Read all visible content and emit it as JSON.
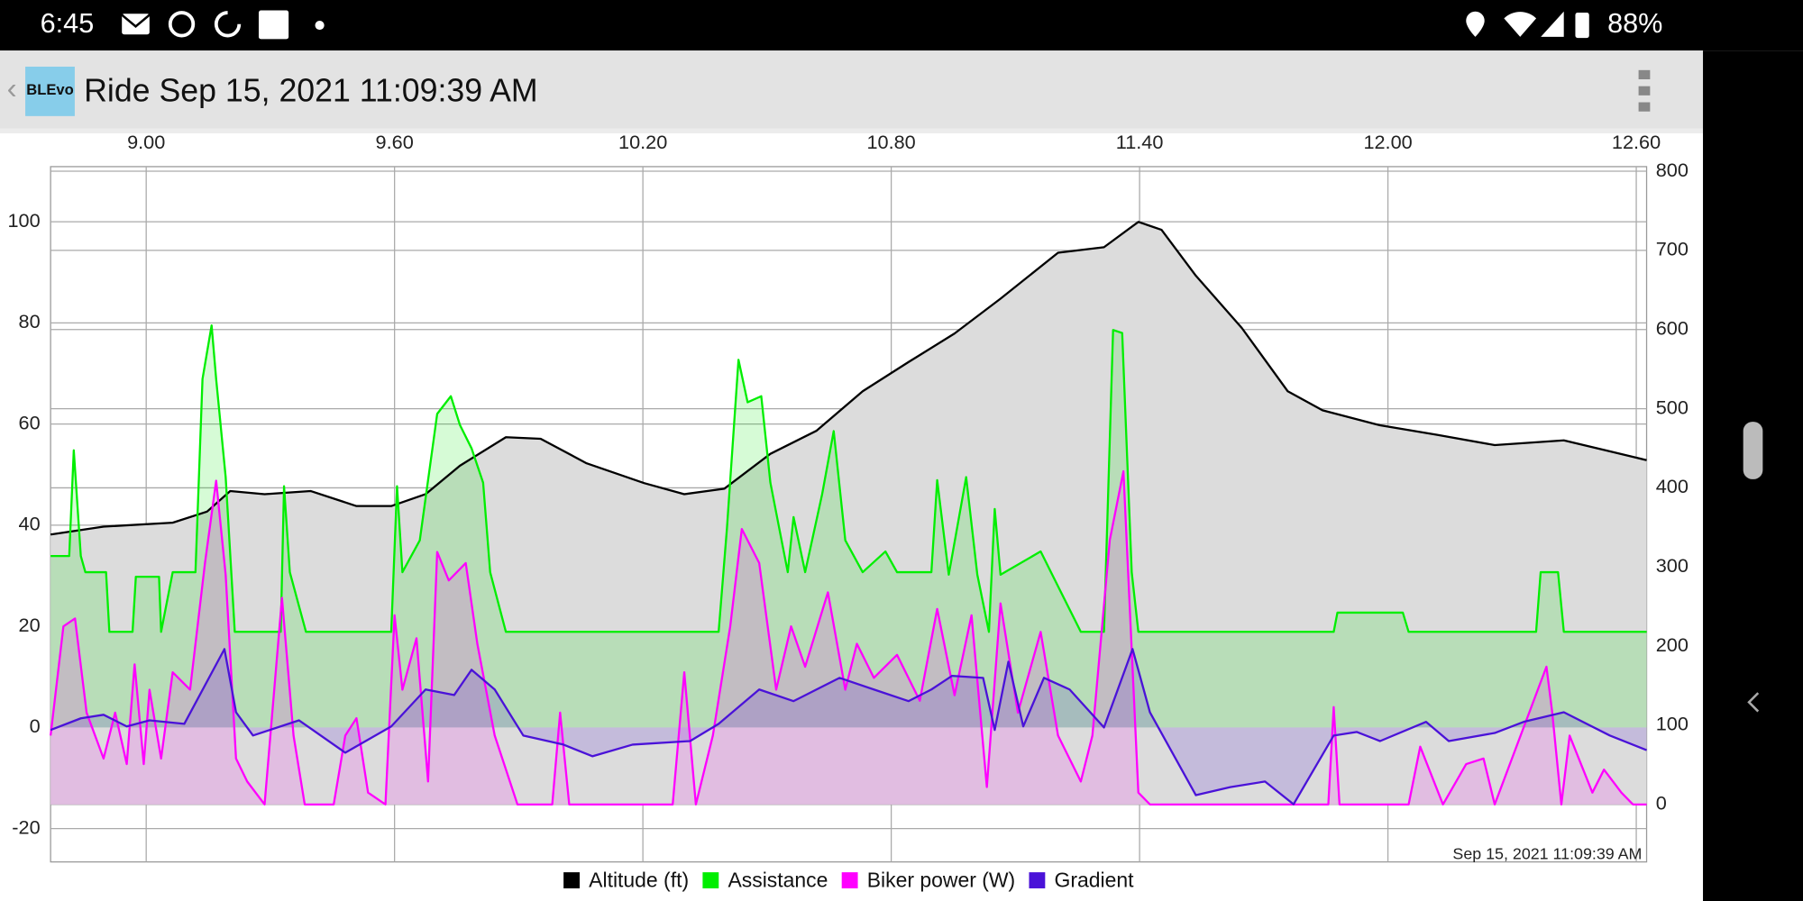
{
  "status_bar": {
    "time": "6:45",
    "battery": "88%"
  },
  "app_bar": {
    "logo": "BLEvo",
    "title": "Ride Sep 15, 2021 11:09:39 AM"
  },
  "chart_data": {
    "type": "line",
    "annotation": "Sep 15, 2021 11:09:39 AM",
    "grid": true,
    "legend": "bottom",
    "xlim": [
      8.769,
      12.625
    ],
    "xticks": [
      {
        "value": 9,
        "label": "9.00"
      },
      {
        "value": 9.6,
        "label": "9.60"
      },
      {
        "value": 10.2,
        "label": "10.20"
      },
      {
        "value": 10.8,
        "label": "10.80"
      },
      {
        "value": 11.4,
        "label": "11.40"
      },
      {
        "value": 12,
        "label": "12.00"
      },
      {
        "value": 12.6,
        "label": "12.60"
      }
    ],
    "ylim": [
      -26.6,
      110.9
    ],
    "yticks": [
      -20,
      0,
      20,
      40,
      60,
      80,
      100
    ],
    "y2lim": [
      -72.6,
      805.8
    ],
    "y2ticks": [
      0,
      100,
      200,
      300,
      400,
      500,
      600,
      700,
      800
    ],
    "series": [
      {
        "name": "Altitude (ft)",
        "color": "#000000",
        "area_color": "#dcdcdc",
        "axis": "y2",
        "x": [
          8.769,
          8.897,
          9.064,
          9.147,
          9.203,
          9.286,
          9.397,
          9.508,
          9.592,
          9.675,
          9.758,
          9.869,
          9.953,
          10.064,
          10.203,
          10.3,
          10.397,
          10.508,
          10.619,
          10.731,
          10.842,
          10.953,
          11.064,
          11.203,
          11.314,
          11.397,
          11.453,
          11.536,
          11.647,
          11.758,
          11.842,
          11.981,
          12.119,
          12.258,
          12.425,
          12.625
        ],
        "values": [
          341,
          351,
          356,
          370,
          396,
          392,
          396,
          377,
          377,
          392,
          428,
          464,
          462,
          431,
          406,
          392,
          399,
          443,
          472,
          522,
          559,
          595,
          639,
          697,
          704,
          736,
          726,
          668,
          602,
          522,
          498,
          479,
          467,
          454,
          460,
          435
        ]
      },
      {
        "name": "Assistance",
        "color": "#00ee00",
        "area_color": "rgba(0,230,0,0.16)",
        "axis": "y",
        "x": [
          8.769,
          8.814,
          8.825,
          8.842,
          8.853,
          8.903,
          8.911,
          8.967,
          8.975,
          9.031,
          9.036,
          9.064,
          9.119,
          9.136,
          9.158,
          9.169,
          9.192,
          9.214,
          9.325,
          9.333,
          9.347,
          9.386,
          9.592,
          9.606,
          9.619,
          9.661,
          9.703,
          9.736,
          9.758,
          9.786,
          9.814,
          9.831,
          9.869,
          10.383,
          10.403,
          10.431,
          10.453,
          10.486,
          10.508,
          10.55,
          10.564,
          10.592,
          10.633,
          10.661,
          10.689,
          10.731,
          10.786,
          10.814,
          10.897,
          10.911,
          10.939,
          10.981,
          11.008,
          11.036,
          11.05,
          11.064,
          11.161,
          11.189,
          11.258,
          11.314,
          11.336,
          11.358,
          11.381,
          11.397,
          11.869,
          11.878,
          12.036,
          12.05,
          12.358,
          12.369,
          12.411,
          12.425,
          12.625
        ],
        "values": [
          33.9,
          33.9,
          54.8,
          33.9,
          30.7,
          30.7,
          18.9,
          18.9,
          29.8,
          29.8,
          18.9,
          30.7,
          30.7,
          68.9,
          79.5,
          68.9,
          49.5,
          18.9,
          18.9,
          47.7,
          30.7,
          18.9,
          18.9,
          47.7,
          30.7,
          37.0,
          62.0,
          65.5,
          59.8,
          55.2,
          48.4,
          30.7,
          18.9,
          18.9,
          39.3,
          72.7,
          64.3,
          65.5,
          48.4,
          30.7,
          41.6,
          30.7,
          46.1,
          58.6,
          37.0,
          30.7,
          34.8,
          30.7,
          30.7,
          48.9,
          30.2,
          49.5,
          30.2,
          18.9,
          43.2,
          30.2,
          34.8,
          30.2,
          18.9,
          18.9,
          78.6,
          78.0,
          30.7,
          18.9,
          18.9,
          22.7,
          22.7,
          18.9,
          18.9,
          30.7,
          30.7,
          18.9,
          18.9
        ]
      },
      {
        "name": "Biker power (W)",
        "color": "#ff00ff",
        "area_color": "rgba(255,0,255,0.14)",
        "axis": "y2",
        "x": [
          8.769,
          8.8,
          8.828,
          8.856,
          8.897,
          8.925,
          8.953,
          8.972,
          8.994,
          9.008,
          9.036,
          9.064,
          9.106,
          9.142,
          9.169,
          9.192,
          9.217,
          9.244,
          9.286,
          9.328,
          9.356,
          9.383,
          9.453,
          9.481,
          9.508,
          9.536,
          9.578,
          9.6,
          9.619,
          9.653,
          9.681,
          9.703,
          9.731,
          9.772,
          9.8,
          9.842,
          9.897,
          9.981,
          10.0,
          10.022,
          10.272,
          10.3,
          10.328,
          10.369,
          10.411,
          10.439,
          10.481,
          10.522,
          10.558,
          10.592,
          10.647,
          10.689,
          10.717,
          10.758,
          10.814,
          10.869,
          10.911,
          10.953,
          10.994,
          11.031,
          11.064,
          11.106,
          11.161,
          11.203,
          11.258,
          11.286,
          11.328,
          11.361,
          11.397,
          11.425,
          11.856,
          11.869,
          11.883,
          12.05,
          12.078,
          12.133,
          12.189,
          12.231,
          12.258,
          12.383,
          12.397,
          12.419,
          12.439,
          12.494,
          12.522,
          12.564,
          12.592,
          12.625
        ],
        "values": [
          87,
          225,
          235,
          116,
          58,
          116,
          51,
          177,
          51,
          145,
          58,
          167,
          145,
          305,
          409,
          290,
          58,
          29,
          0,
          261,
          87,
          0,
          0,
          87,
          109,
          15,
          0,
          239,
          145,
          210,
          29,
          319,
          283,
          305,
          203,
          87,
          0,
          0,
          116,
          0,
          0,
          167,
          0,
          87,
          225,
          348,
          305,
          145,
          225,
          174,
          268,
          145,
          203,
          160,
          189,
          131,
          247,
          138,
          239,
          22,
          254,
          116,
          218,
          87,
          29,
          87,
          334,
          421,
          15,
          0,
          0,
          123,
          0,
          0,
          73,
          0,
          51,
          58,
          0,
          174,
          116,
          0,
          87,
          15,
          44,
          15,
          0,
          0
        ]
      },
      {
        "name": "Gradient",
        "color": "#4a12d8",
        "area_color": "rgba(74,18,216,0.16)",
        "axis": "y",
        "x": [
          8.769,
          8.842,
          8.897,
          8.953,
          9.008,
          9.092,
          9.189,
          9.217,
          9.258,
          9.369,
          9.481,
          9.592,
          9.675,
          9.744,
          9.786,
          9.842,
          9.911,
          10.008,
          10.078,
          10.175,
          10.314,
          10.383,
          10.481,
          10.564,
          10.675,
          10.758,
          10.842,
          10.897,
          10.947,
          11.022,
          11.05,
          11.083,
          11.119,
          11.169,
          11.231,
          11.314,
          11.383,
          11.425,
          11.536,
          11.619,
          11.703,
          11.772,
          11.869,
          11.925,
          11.981,
          12.092,
          12.147,
          12.258,
          12.328,
          12.425,
          12.536,
          12.625
        ],
        "values": [
          -0.5,
          1.8,
          2.5,
          0.2,
          1.4,
          0.7,
          15.5,
          3.0,
          -1.6,
          1.4,
          -5.0,
          0.2,
          7.5,
          6.4,
          11.4,
          7.5,
          -1.6,
          -3.4,
          -5.7,
          -3.4,
          -2.7,
          0.7,
          7.5,
          5.2,
          9.8,
          7.5,
          5.2,
          7.5,
          10.2,
          9.8,
          -0.5,
          13.0,
          0.2,
          9.8,
          7.5,
          0.0,
          15.5,
          3.0,
          -13.4,
          -11.8,
          -10.7,
          -15.2,
          -1.6,
          -0.9,
          -2.7,
          1.1,
          -2.7,
          -1.1,
          1.1,
          3.0,
          -1.6,
          -4.5
        ]
      }
    ]
  }
}
